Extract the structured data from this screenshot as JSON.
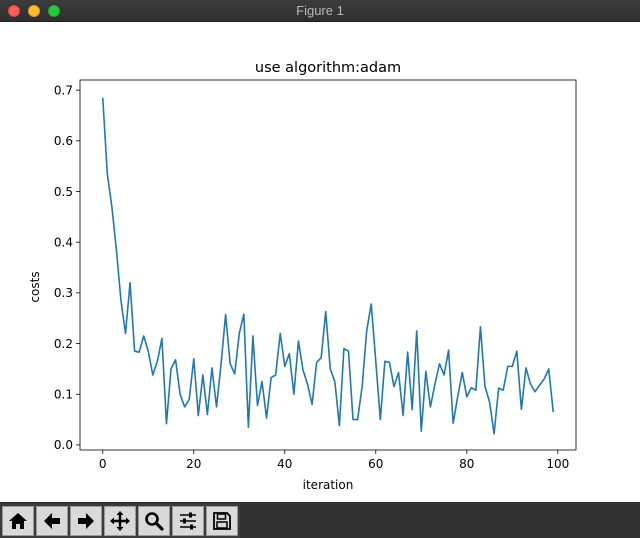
{
  "window": {
    "title": "Figure 1"
  },
  "toolbar": {
    "buttons": [
      {
        "name": "home-button",
        "icon": "home-icon"
      },
      {
        "name": "back-button",
        "icon": "arrow-left-icon"
      },
      {
        "name": "forward-button",
        "icon": "arrow-right-icon"
      },
      {
        "name": "pan-button",
        "icon": "move-icon"
      },
      {
        "name": "zoom-button",
        "icon": "magnifier-icon"
      },
      {
        "name": "configure-subplots-button",
        "icon": "sliders-icon"
      },
      {
        "name": "save-button",
        "icon": "floppy-disk-icon"
      }
    ]
  },
  "chart_data": {
    "type": "line",
    "title": "use algorithm:adam",
    "xlabel": "iteration",
    "ylabel": "costs",
    "xlim": [
      -5,
      104
    ],
    "ylim": [
      -0.01,
      0.72
    ],
    "xticks": [
      0,
      20,
      40,
      60,
      80,
      100
    ],
    "yticks": [
      0.0,
      0.1,
      0.2,
      0.3,
      0.4,
      0.5,
      0.6,
      0.7
    ],
    "ytick_labels": [
      "0.0",
      "0.1",
      "0.2",
      "0.3",
      "0.4",
      "0.5",
      "0.6",
      "0.7"
    ],
    "grid": false,
    "line_color": "#1f77b4",
    "series": [
      {
        "x": [
          0,
          1,
          2,
          3,
          4,
          5,
          6,
          7,
          8,
          9,
          10,
          11,
          12,
          13,
          14,
          15,
          16,
          17,
          18,
          19,
          20,
          21,
          22,
          23,
          24,
          25,
          26,
          27,
          28,
          29,
          30,
          31,
          32,
          33,
          34,
          35,
          36,
          37,
          38,
          39,
          40,
          41,
          42,
          43,
          44,
          45,
          46,
          47,
          48,
          49,
          50,
          51,
          52,
          53,
          54,
          55,
          56,
          57,
          58,
          59,
          60,
          61,
          62,
          63,
          64,
          65,
          66,
          67,
          68,
          69,
          70,
          71,
          72,
          73,
          74,
          75,
          76,
          77,
          78,
          79,
          80,
          81,
          82,
          83,
          84,
          85,
          86,
          87,
          88,
          89,
          90,
          91,
          92,
          93,
          94,
          95,
          96,
          97,
          98,
          99
        ],
        "values": [
          0.685,
          0.535,
          0.47,
          0.385,
          0.285,
          0.22,
          0.32,
          0.185,
          0.183,
          0.215,
          0.185,
          0.138,
          0.165,
          0.21,
          0.042,
          0.15,
          0.168,
          0.1,
          0.075,
          0.09,
          0.17,
          0.058,
          0.138,
          0.06,
          0.152,
          0.075,
          0.16,
          0.257,
          0.16,
          0.14,
          0.22,
          0.258,
          0.035,
          0.215,
          0.078,
          0.125,
          0.053,
          0.133,
          0.138,
          0.22,
          0.155,
          0.18,
          0.1,
          0.205,
          0.148,
          0.12,
          0.08,
          0.163,
          0.172,
          0.263,
          0.15,
          0.125,
          0.038,
          0.19,
          0.185,
          0.05,
          0.05,
          0.115,
          0.225,
          0.278,
          0.165,
          0.05,
          0.165,
          0.163,
          0.115,
          0.143,
          0.058,
          0.183,
          0.07,
          0.225,
          0.027,
          0.145,
          0.075,
          0.12,
          0.16,
          0.138,
          0.187,
          0.043,
          0.095,
          0.143,
          0.095,
          0.113,
          0.108,
          0.233,
          0.115,
          0.085,
          0.022,
          0.112,
          0.108,
          0.155,
          0.155,
          0.185,
          0.07,
          0.152,
          0.12,
          0.105,
          0.118,
          0.13,
          0.15,
          0.065
        ]
      }
    ]
  }
}
